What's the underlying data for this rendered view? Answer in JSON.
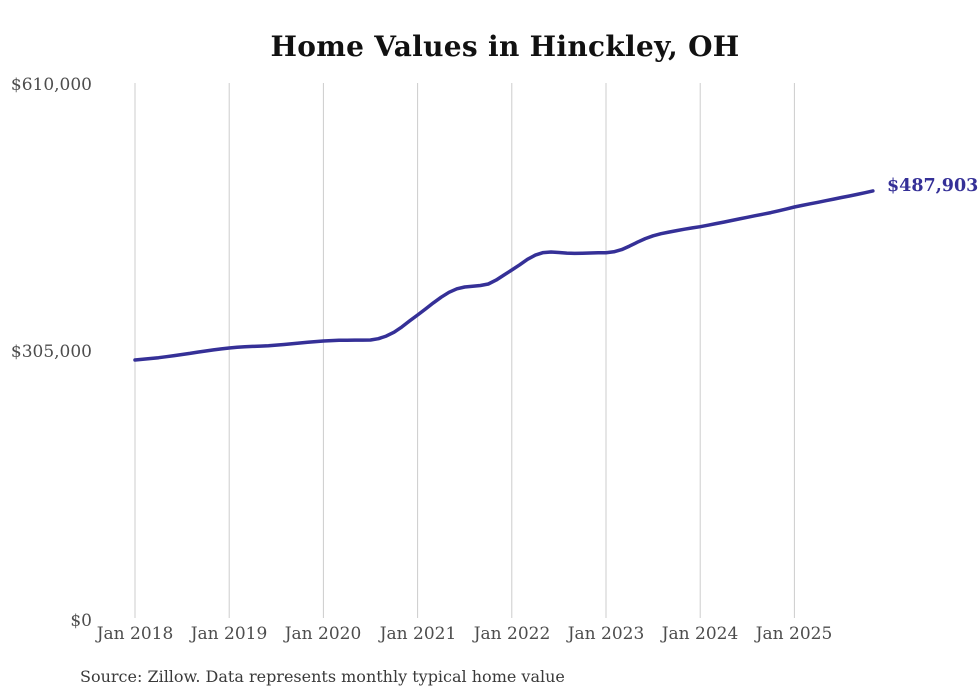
{
  "title": "Home Values in Hinckley, OH",
  "end_label": "$487,903",
  "source_note": "Source: Zillow. Data represents monthly typical home value",
  "colors": {
    "line": "#353097",
    "gridline": "#cccccc",
    "axis_text": "#4d4d4d",
    "title_text": "#111111",
    "source_text": "#3a3a3a",
    "background": "#ffffff"
  },
  "chart_data": {
    "type": "line",
    "title": "Home Values in Hinckley, OH",
    "xlabel": "",
    "ylabel": "",
    "ylim": [
      0,
      610000
    ],
    "grid": "vertical-only",
    "legend": "none",
    "x_ticks": [
      "Jan 2018",
      "Jan 2019",
      "Jan 2020",
      "Jan 2021",
      "Jan 2022",
      "Jan 2023",
      "Jan 2024",
      "Jan 2025"
    ],
    "y_ticks": [
      {
        "label": "$610,000",
        "value": 610000
      },
      {
        "label": "$305,000",
        "value": 305000
      },
      {
        "label": "$0",
        "value": 0
      }
    ],
    "series": [
      {
        "name": "Typical home value",
        "frequency": "monthly",
        "start_month": "2018-01",
        "end_month": "2025-11",
        "values": [
          294700,
          295500,
          296400,
          297400,
          298500,
          299700,
          301000,
          302300,
          303700,
          305000,
          306200,
          307400,
          308400,
          309200,
          309800,
          310200,
          310600,
          311100,
          311700,
          312400,
          313200,
          314100,
          314900,
          315700,
          316400,
          316900,
          317200,
          317300,
          317400,
          317450,
          317550,
          319000,
          322000,
          326500,
          332500,
          339500,
          346100,
          353000,
          360000,
          366500,
          372000,
          376000,
          378100,
          379000,
          379800,
          381500,
          386000,
          391800,
          397500,
          403500,
          409800,
          414500,
          417400,
          418100,
          417500,
          416800,
          416500,
          416700,
          417000,
          417200,
          417300,
          418300,
          420800,
          424800,
          429300,
          433400,
          436600,
          439000,
          440800,
          442500,
          444100,
          445600,
          447000,
          448700,
          450500,
          452300,
          454100,
          455900,
          457700,
          459500,
          461300,
          463100,
          465200,
          467300,
          469500,
          471300,
          473100,
          474900,
          476700,
          478500,
          480300,
          482100,
          483900,
          485800,
          487903
        ],
        "latest_value": 487903,
        "latest_value_label": "$487,903"
      }
    ],
    "source": "Source: Zillow. Data represents monthly typical home value"
  }
}
